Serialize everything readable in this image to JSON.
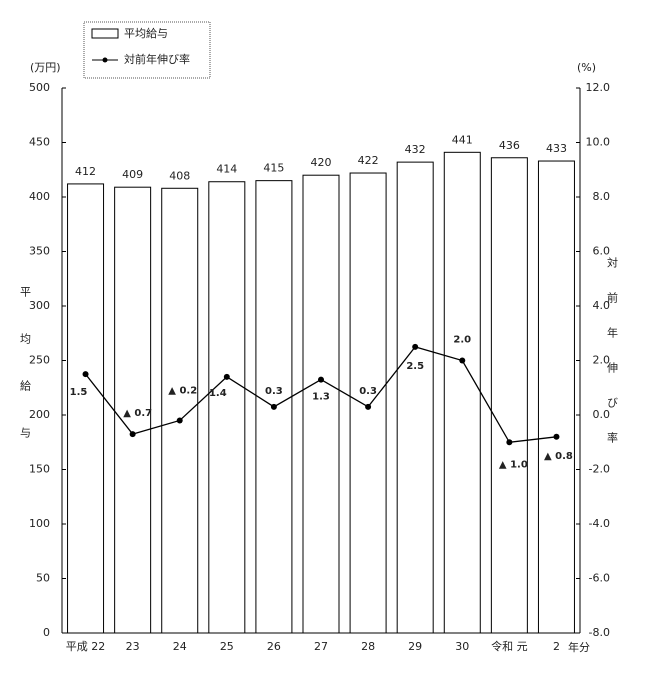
{
  "chart_data": {
    "type": "bar-line",
    "legend": [
      "平均給与",
      "対前年伸び率"
    ],
    "ylabel": "平均給与",
    "y2label": "対前年伸び率",
    "yunit": "(万円)",
    "y2unit": "(%)",
    "xunit": "年分",
    "categories": [
      "平成 22",
      "23",
      "24",
      "25",
      "26",
      "27",
      "28",
      "29",
      "30",
      "令和 元",
      "2"
    ],
    "series": [
      {
        "name": "平均給与",
        "type": "bar",
        "color": "#ffffff",
        "values": [
          412,
          409,
          408,
          414,
          415,
          420,
          422,
          432,
          441,
          436,
          433
        ]
      },
      {
        "name": "対前年伸び率",
        "type": "line",
        "axis": "y2",
        "color": "#000000",
        "values": [
          1.5,
          -0.7,
          -0.2,
          1.4,
          0.3,
          1.3,
          0.3,
          2.5,
          2.0,
          -1.0,
          -0.8
        ],
        "value_labels": [
          "1.5",
          "▲ 0.7",
          "▲ 0.2",
          "1.4",
          "0.3",
          "1.3",
          "0.3",
          "2.5",
          "2.0",
          "▲ 1.0",
          "▲ 0.8"
        ]
      }
    ],
    "ylim": [
      0,
      500
    ],
    "yticks": [
      0,
      50,
      100,
      150,
      200,
      250,
      300,
      350,
      400,
      450,
      500
    ],
    "y2lim": [
      -8,
      12
    ],
    "y2ticks": [
      {
        "value": -8,
        "label": "-8.0"
      },
      {
        "value": -6,
        "label": "-6.0"
      },
      {
        "value": -4,
        "label": "-4.0"
      },
      {
        "value": -2,
        "label": "-2.0"
      },
      {
        "value": 0,
        "label": "0.0"
      },
      {
        "value": 2,
        "label": "2.0"
      },
      {
        "value": 4,
        "label": "4.0"
      },
      {
        "value": 6,
        "label": "6.0"
      },
      {
        "value": 8,
        "label": "8.0"
      },
      {
        "value": 10,
        "label": "10.0"
      },
      {
        "value": 12,
        "label": "12.0"
      }
    ],
    "grid": false
  }
}
